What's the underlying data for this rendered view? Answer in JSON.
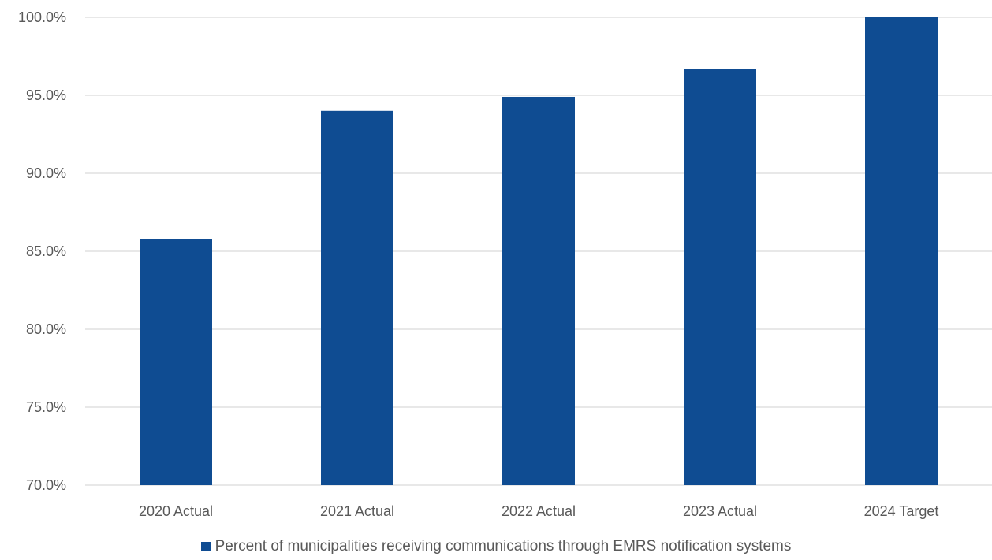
{
  "chart_data": {
    "type": "bar",
    "categories": [
      "2020 Actual",
      "2021 Actual",
      "2022 Actual",
      "2023 Actual",
      "2024 Target"
    ],
    "series": [
      {
        "name": "Percent of municipalities receiving communications through EMRS notification systems",
        "values": [
          85.8,
          94.0,
          94.9,
          96.7,
          100.0
        ],
        "color": "#0f4c92"
      }
    ],
    "title": "",
    "xlabel": "",
    "ylabel": "",
    "ylim": [
      70,
      100
    ],
    "y_ticks": [
      "70.0%",
      "75.0%",
      "80.0%",
      "85.0%",
      "90.0%",
      "95.0%",
      "100.0%"
    ],
    "y_tick_values": [
      70,
      75,
      80,
      85,
      90,
      95,
      100
    ],
    "grid": true,
    "legend_position": "bottom"
  }
}
